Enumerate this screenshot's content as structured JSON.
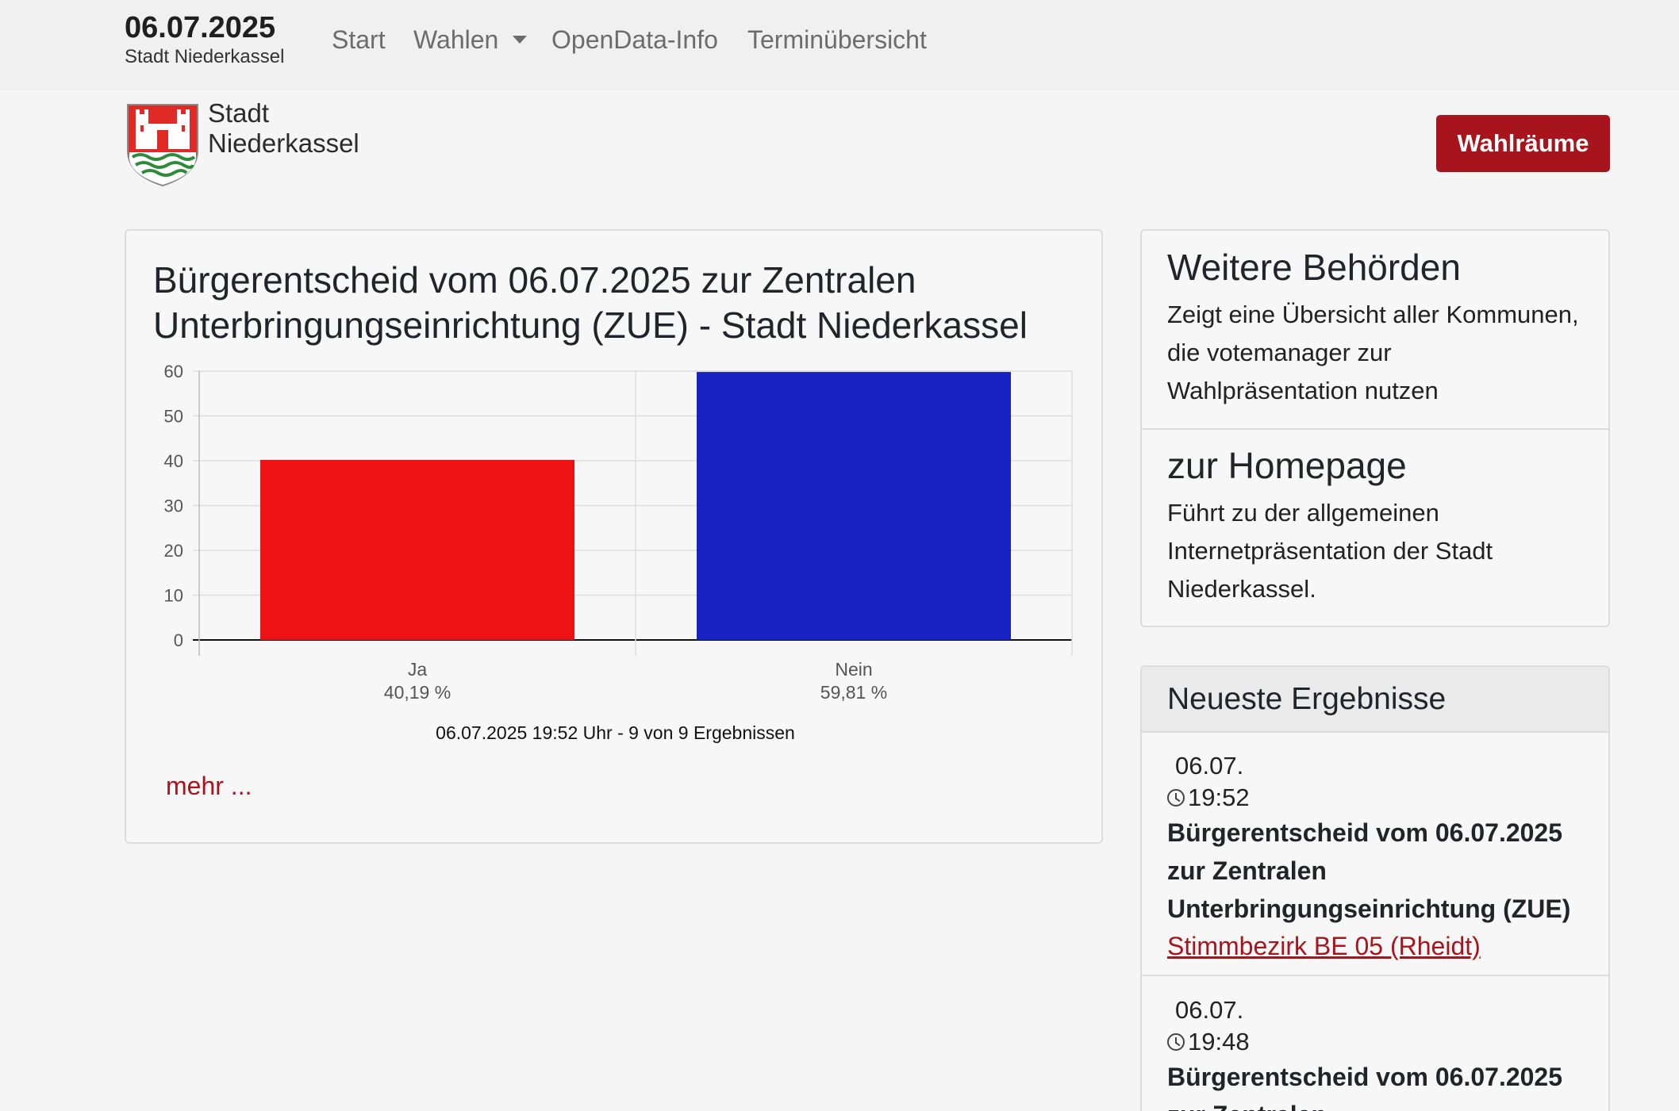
{
  "navbar": {
    "date": "06.07.2025",
    "city": "Stadt Niederkassel",
    "links": {
      "start": "Start",
      "wahlen": "Wahlen",
      "opendata": "OpenData-Info",
      "termine": "Terminübersicht"
    }
  },
  "header": {
    "logo_text_line1": "Stadt",
    "logo_text_line2": "Niederkassel",
    "wahlraeume_button": "Wahlräume"
  },
  "main": {
    "title": "Bürgerentscheid vom 06.07.2025 zur Zentralen Unterbringungseinrichtung (ZUE) - Stadt Niederkassel",
    "caption": "06.07.2025 19:52 Uhr - 9 von 9 Ergebnissen",
    "more_link": "mehr ..."
  },
  "chart_data": {
    "type": "bar",
    "categories": [
      "Ja",
      "Nein"
    ],
    "category_sublabels": [
      "40,19 %",
      "59,81 %"
    ],
    "values": [
      40.19,
      59.81
    ],
    "colors": [
      "#ee1215",
      "#1822c2"
    ],
    "ylim": [
      0,
      60
    ],
    "yticks": [
      0,
      10,
      20,
      30,
      40,
      50,
      60
    ],
    "grid": true
  },
  "sidebar": {
    "weitere": {
      "title": "Weitere Behörden",
      "text": "Zeigt eine Übersicht aller Kommunen, die votemanager zur Wahlpräsentation nutzen"
    },
    "homepage": {
      "title": "zur Homepage",
      "text": "Führt zu der allgemeinen Internetpräsentation der Stadt Niederkassel."
    }
  },
  "results": {
    "heading": "Neueste Ergebnisse",
    "items": [
      {
        "date": "06.07.",
        "time": "19:52",
        "title": "Bürgerentscheid vom 06.07.2025 zur Zentralen Unterbringungseinrichtung (ZUE)",
        "link": "Stimmbezirk BE 05 (Rheidt)"
      },
      {
        "date": "06.07.",
        "time": "19:48",
        "title": "Bürgerentscheid vom 06.07.2025 zur Zentralen"
      }
    ]
  }
}
